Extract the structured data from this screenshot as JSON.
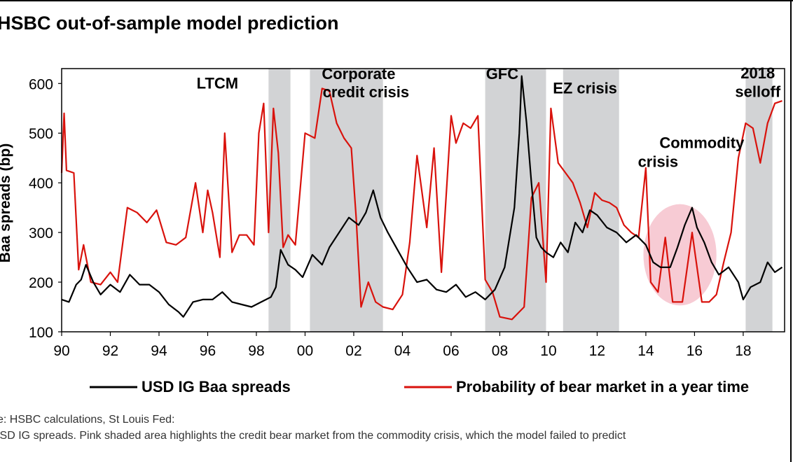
{
  "title": "HSBC out-of-sample model prediction",
  "footnotes": {
    "source": "ce: HSBC calculations, St Louis Fed:",
    "note": "USD IG spreads. Pink shaded area highlights the credit bear market from the commodity crisis, which the model failed to predict"
  },
  "colors": {
    "spread_line": "#000000",
    "probability_line": "#d9120c",
    "crisis_band": "#d2d3d5",
    "commodity_ellipse": "#f6c2cc"
  },
  "chart_data": {
    "type": "line",
    "ylabel": "Baa spreads (bp)",
    "ylim": [
      100,
      630
    ],
    "xlim": [
      1990,
      2019.7
    ],
    "yticks": [
      100,
      200,
      300,
      400,
      500,
      600
    ],
    "xticks": [
      1990,
      1992,
      1994,
      1996,
      1998,
      2000,
      2002,
      2004,
      2006,
      2008,
      2010,
      2012,
      2014,
      2016,
      2018
    ],
    "xtick_labels": [
      "90",
      "92",
      "94",
      "96",
      "98",
      "00",
      "02",
      "04",
      "06",
      "08",
      "10",
      "12",
      "14",
      "16",
      "18"
    ],
    "crisis_periods": [
      {
        "label": "LTCM",
        "start": 1998.5,
        "end": 1999.4
      },
      {
        "label": "Corporate credit crisis",
        "start": 2000.2,
        "end": 2003.2
      },
      {
        "label": "GFC",
        "start": 2007.4,
        "end": 2009.9
      },
      {
        "label": "EZ crisis",
        "start": 2010.6,
        "end": 2012.9
      },
      {
        "label": "2018 selloff",
        "start": 2018.1,
        "end": 2019.2
      }
    ],
    "annotations": [
      {
        "text": "LTCM",
        "x": 1996.4,
        "y": 590
      },
      {
        "text": "Corporate",
        "x": 2002.2,
        "y": 609
      },
      {
        "text": "credit crisis",
        "x": 2002.5,
        "y": 572
      },
      {
        "text": "GFC",
        "x": 2008.1,
        "y": 609
      },
      {
        "text": "EZ crisis",
        "x": 2011.5,
        "y": 580
      },
      {
        "text": "2018",
        "x": 2018.6,
        "y": 610
      },
      {
        "text": "selloff",
        "x": 2018.6,
        "y": 573
      },
      {
        "text": "Commodity",
        "x": 2016.3,
        "y": 470
      },
      {
        "text": "crisis",
        "x": 2014.5,
        "y": 432
      }
    ],
    "highlight_region": {
      "label": "Commodity crisis",
      "x_center": 2015.4,
      "y_center": 255,
      "x_radius": 1.5,
      "y_radius": 102
    },
    "legend": [
      "USD IG Baa spreads",
      "Probability of bear market in a year time"
    ],
    "series": [
      {
        "name": "USD IG Baa spreads",
        "x": [
          1990.0,
          1990.3,
          1990.6,
          1990.8,
          1991.0,
          1991.3,
          1991.6,
          1992.0,
          1992.4,
          1992.8,
          1993.2,
          1993.6,
          1994.0,
          1994.4,
          1994.8,
          1995.0,
          1995.4,
          1995.8,
          1996.2,
          1996.6,
          1997.0,
          1997.4,
          1997.8,
          1998.2,
          1998.6,
          1998.8,
          1999.0,
          1999.3,
          1999.6,
          1999.9,
          2000.3,
          2000.7,
          2001.0,
          2001.4,
          2001.8,
          2002.2,
          2002.5,
          2002.8,
          2003.1,
          2003.4,
          2003.8,
          2004.2,
          2004.6,
          2005.0,
          2005.4,
          2005.8,
          2006.2,
          2006.6,
          2007.0,
          2007.4,
          2007.8,
          2008.2,
          2008.6,
          2008.8,
          2008.9,
          2009.1,
          2009.3,
          2009.5,
          2009.7,
          2009.9,
          2010.2,
          2010.5,
          2010.8,
          2011.1,
          2011.4,
          2011.7,
          2012.0,
          2012.4,
          2012.8,
          2013.2,
          2013.6,
          2014.0,
          2014.3,
          2014.6,
          2015.0,
          2015.3,
          2015.6,
          2015.9,
          2016.1,
          2016.4,
          2016.7,
          2017.0,
          2017.4,
          2017.8,
          2018.0,
          2018.3,
          2018.7,
          2019.0,
          2019.3,
          2019.6
        ],
        "values": [
          165,
          160,
          195,
          205,
          235,
          200,
          175,
          195,
          180,
          215,
          195,
          195,
          180,
          155,
          140,
          130,
          160,
          165,
          165,
          180,
          160,
          155,
          150,
          160,
          170,
          190,
          265,
          235,
          225,
          210,
          255,
          235,
          270,
          300,
          330,
          315,
          340,
          385,
          330,
          300,
          265,
          230,
          200,
          205,
          185,
          180,
          195,
          170,
          180,
          165,
          185,
          230,
          350,
          500,
          615,
          520,
          400,
          290,
          270,
          260,
          250,
          280,
          260,
          320,
          300,
          345,
          335,
          310,
          300,
          280,
          295,
          275,
          240,
          230,
          230,
          270,
          315,
          350,
          310,
          280,
          240,
          215,
          230,
          200,
          165,
          190,
          200,
          240,
          220,
          230
        ]
      },
      {
        "name": "Probability of bear market in a year time",
        "x": [
          1990.0,
          1990.1,
          1990.2,
          1990.5,
          1990.7,
          1990.9,
          1991.2,
          1991.6,
          1992.0,
          1992.3,
          1992.7,
          1993.1,
          1993.5,
          1993.9,
          1994.3,
          1994.7,
          1995.1,
          1995.5,
          1995.8,
          1996.0,
          1996.2,
          1996.5,
          1996.7,
          1997.0,
          1997.3,
          1997.6,
          1997.9,
          1998.1,
          1998.3,
          1998.5,
          1998.7,
          1998.9,
          1999.1,
          1999.3,
          1999.6,
          2000.0,
          2000.4,
          2000.7,
          2001.0,
          2001.3,
          2001.6,
          2001.9,
          2002.1,
          2002.3,
          2002.6,
          2002.9,
          2003.2,
          2003.6,
          2004.0,
          2004.3,
          2004.6,
          2005.0,
          2005.3,
          2005.6,
          2006.0,
          2006.2,
          2006.5,
          2006.8,
          2007.1,
          2007.4,
          2007.7,
          2008.0,
          2008.5,
          2009.0,
          2009.3,
          2009.6,
          2009.9,
          2010.1,
          2010.4,
          2010.7,
          2011.0,
          2011.3,
          2011.6,
          2011.9,
          2012.2,
          2012.5,
          2012.8,
          2013.1,
          2013.4,
          2013.7,
          2014.0,
          2014.2,
          2014.5,
          2014.8,
          2015.1,
          2015.5,
          2015.9,
          2016.3,
          2016.6,
          2016.9,
          2017.2,
          2017.5,
          2017.8,
          2018.1,
          2018.4,
          2018.7,
          2019.0,
          2019.3,
          2019.6
        ],
        "values": [
          420,
          540,
          425,
          420,
          225,
          275,
          200,
          195,
          220,
          200,
          350,
          340,
          320,
          345,
          280,
          275,
          290,
          400,
          300,
          385,
          340,
          250,
          500,
          260,
          295,
          295,
          275,
          500,
          560,
          300,
          550,
          460,
          270,
          295,
          275,
          500,
          490,
          590,
          585,
          520,
          490,
          470,
          330,
          150,
          200,
          160,
          150,
          145,
          175,
          280,
          455,
          310,
          470,
          220,
          535,
          480,
          520,
          510,
          535,
          205,
          180,
          130,
          125,
          150,
          370,
          400,
          200,
          550,
          440,
          420,
          400,
          360,
          310,
          380,
          365,
          360,
          350,
          315,
          300,
          290,
          430,
          200,
          180,
          290,
          160,
          160,
          300,
          160,
          160,
          175,
          240,
          300,
          450,
          520,
          510,
          440,
          520,
          560,
          565
        ]
      }
    ]
  }
}
